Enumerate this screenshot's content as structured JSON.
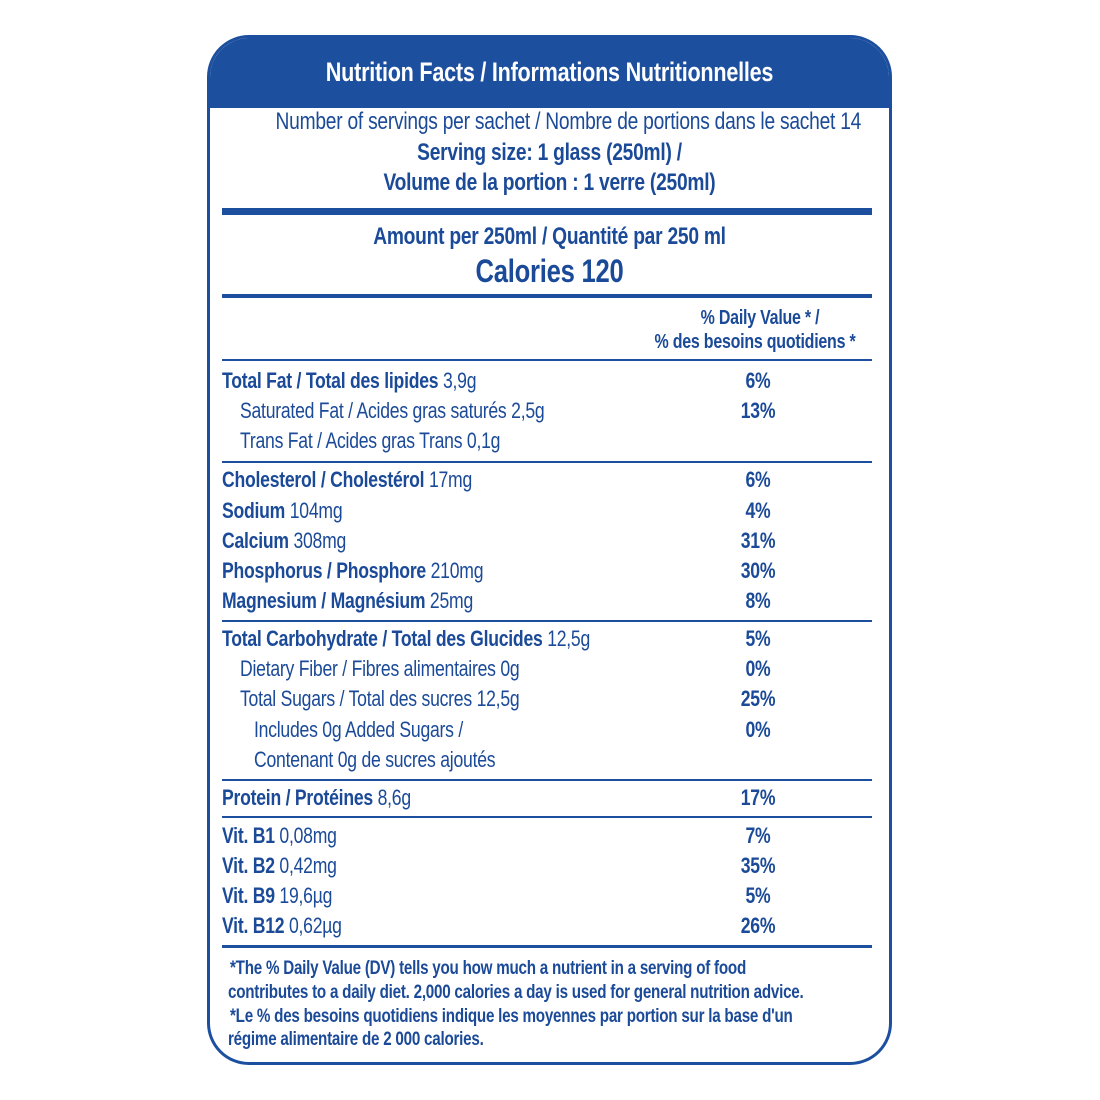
{
  "header": {
    "title": "Nutrition Facts / Informations Nutritionnelles"
  },
  "servings": {
    "per_sachet": "Number of servings per sachet / Nombre de portions dans le sachet 14",
    "size_en": "Serving size: 1 glass (250ml) /",
    "size_fr": "Volume de la portion : 1 verre (250ml)"
  },
  "amount": {
    "label": "Amount per 250ml / Quantité par 250 ml",
    "calories": "Calories 120"
  },
  "daily_value_header": {
    "en": "% Daily Value * /",
    "fr": "% des besoins  quotidiens *"
  },
  "nutrients": [
    {
      "name": "Total Fat / Total des lipides",
      "amount": "3,9g",
      "dv": "6%"
    },
    {
      "name": "Saturated Fat / Acides gras saturés",
      "amount": "2,5g",
      "dv": "13%"
    },
    {
      "name": "Trans Fat / Acides gras Trans",
      "amount": "0,1g"
    },
    {
      "name": "Cholesterol / Cholestérol",
      "amount": "17mg",
      "dv": "6%"
    },
    {
      "name": "Sodium",
      "amount": "104mg",
      "dv": "4%"
    },
    {
      "name": "Calcium",
      "amount": "308mg",
      "dv": "31%"
    },
    {
      "name": "Phosphorus / Phosphore",
      "amount": "210mg",
      "dv": "30%"
    },
    {
      "name": "Magnesium / Magnésium",
      "amount": "25mg",
      "dv": "8%"
    },
    {
      "name": "Total Carbohydrate / Total des Glucides",
      "amount": "12,5g",
      "dv": "5%"
    },
    {
      "name": "Dietary Fiber / Fibres alimentaires",
      "amount": "0g",
      "dv": "0%"
    },
    {
      "name": "Total Sugars / Total des sucres",
      "amount": "12,5g",
      "dv": "25%"
    },
    {
      "name": "Includes 0g Added Sugars /",
      "name_2": "Contenant 0g de sucres ajoutés",
      "dv": "0%"
    },
    {
      "name": "Protein / Protéines",
      "amount": "8,6g",
      "dv": "17%"
    },
    {
      "name": "Vit. B1",
      "amount": "0,08mg",
      "dv": "7%"
    },
    {
      "name": "Vit. B2",
      "amount": "0,42mg",
      "dv": "35%"
    },
    {
      "name": "Vit. B9",
      "amount": "19,6µg",
      "dv": "5%"
    },
    {
      "name": "Vit. B12",
      "amount": "0,62µg",
      "dv": "26%"
    }
  ],
  "footnote": [
    "*The % Daily Value (DV) tells you how much a nutrient in a serving of food",
    "contributes to a daily diet. 2,000 calories a day is used for general nutrition advice.",
    "*Le % des besoins quotidiens indique les moyennes par portion sur la base d'un",
    "régime alimentaire de 2 000 calories."
  ]
}
